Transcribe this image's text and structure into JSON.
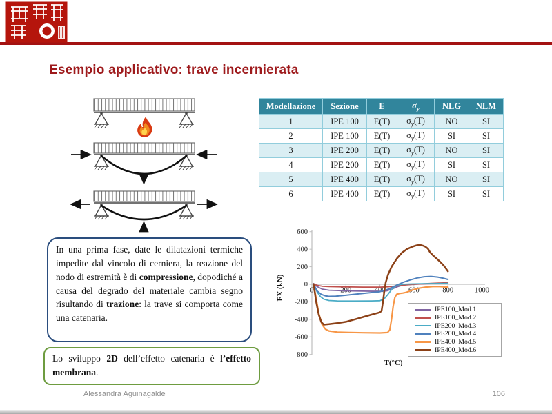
{
  "slide": {
    "title": "Esempio applicativo: trave incernierata",
    "footer": {
      "author": "Alessandra Aguinagalde",
      "page": "106"
    }
  },
  "table": {
    "headers": [
      "Modellazione",
      "Sezione",
      "E",
      "σy",
      "NLG",
      "NLM"
    ],
    "rows": [
      [
        "1",
        "IPE 100",
        "E(T)",
        "σy(T)",
        "NO",
        "SI"
      ],
      [
        "2",
        "IPE 100",
        "E(T)",
        "σy(T)",
        "SI",
        "SI"
      ],
      [
        "3",
        "IPE 200",
        "E(T)",
        "σy(T)",
        "NO",
        "SI"
      ],
      [
        "4",
        "IPE 200",
        "E(T)",
        "σy(T)",
        "SI",
        "SI"
      ],
      [
        "5",
        "IPE 400",
        "E(T)",
        "σy(T)",
        "NO",
        "SI"
      ],
      [
        "6",
        "IPE 400",
        "E(T)",
        "σy(T)",
        "SI",
        "SI"
      ]
    ],
    "header_bg": "#31859C",
    "row_alt_bg": "#DAEEF3",
    "border_color": "#92CDDC"
  },
  "notes": {
    "blue_box": {
      "part1": "In una prima fase, date le dilatazioni termiche impedite dal vincolo di cerniera, la reazione del nodo di estremità è di ",
      "bold1": "compressione",
      "part2": ", dopodiché a causa del degrado del materiale cambia segno risultando di ",
      "bold2": "trazione",
      "part3": ": la trave si comporta come una catenaria.",
      "border_color": "#2A4D7E"
    },
    "green_box": {
      "part1": "Lo sviluppo ",
      "bold1": "2D",
      "part2": " dell’effetto catenaria è ",
      "bold2": "l’effetto membrana",
      "part3": ".",
      "border_color": "#6E9C40"
    }
  },
  "chart_data": {
    "type": "line",
    "title": "",
    "xlabel": "T(°C)",
    "ylabel": "FX (kN)",
    "xlim": [
      0,
      1000
    ],
    "ylim": [
      -800,
      600
    ],
    "xticks": [
      0,
      200,
      400,
      600,
      800,
      1000
    ],
    "yticks": [
      600,
      400,
      200,
      0,
      -200,
      -400,
      -600,
      -800
    ],
    "grid": false,
    "legend_position": "inside bottom-right",
    "series": [
      {
        "name": "IPE100_Mod.1",
        "color": "#8064A2",
        "points": [
          [
            10,
            8
          ],
          [
            30,
            -25
          ],
          [
            60,
            -55
          ],
          [
            100,
            -68
          ],
          [
            200,
            -75
          ],
          [
            300,
            -78
          ],
          [
            400,
            -80
          ],
          [
            440,
            -75
          ],
          [
            470,
            -55
          ],
          [
            500,
            -30
          ],
          [
            530,
            -12
          ],
          [
            560,
            -4
          ],
          [
            600,
            1
          ],
          [
            700,
            7
          ],
          [
            800,
            12
          ]
        ]
      },
      {
        "name": "IPE100_Mod.2",
        "color": "#C0504D",
        "points": [
          [
            10,
            8
          ],
          [
            30,
            -12
          ],
          [
            60,
            -22
          ],
          [
            100,
            -27
          ],
          [
            200,
            -30
          ],
          [
            300,
            -32
          ],
          [
            400,
            -33
          ],
          [
            450,
            -28
          ],
          [
            500,
            -18
          ],
          [
            550,
            -8
          ],
          [
            600,
            -1
          ],
          [
            650,
            5
          ],
          [
            700,
            10
          ],
          [
            750,
            15
          ],
          [
            800,
            19
          ]
        ]
      },
      {
        "name": "IPE200_Mod.3",
        "color": "#4BACC6",
        "points": [
          [
            10,
            5
          ],
          [
            30,
            -85
          ],
          [
            50,
            -140
          ],
          [
            70,
            -170
          ],
          [
            100,
            -185
          ],
          [
            150,
            -190
          ],
          [
            250,
            -191
          ],
          [
            350,
            -190
          ],
          [
            400,
            -187
          ],
          [
            425,
            -165
          ],
          [
            445,
            -120
          ],
          [
            465,
            -70
          ],
          [
            485,
            -30
          ],
          [
            505,
            -8
          ],
          [
            530,
            0
          ],
          [
            580,
            4
          ],
          [
            650,
            7
          ],
          [
            800,
            10
          ]
        ]
      },
      {
        "name": "IPE200_Mod.4",
        "color": "#4F81BD",
        "points": [
          [
            10,
            5
          ],
          [
            30,
            -75
          ],
          [
            55,
            -115
          ],
          [
            80,
            -132
          ],
          [
            100,
            -138
          ],
          [
            140,
            -136
          ],
          [
            200,
            -125
          ],
          [
            260,
            -112
          ],
          [
            320,
            -100
          ],
          [
            400,
            -84
          ],
          [
            440,
            -62
          ],
          [
            470,
            -38
          ],
          [
            500,
            -8
          ],
          [
            540,
            25
          ],
          [
            580,
            50
          ],
          [
            620,
            72
          ],
          [
            660,
            86
          ],
          [
            700,
            90
          ],
          [
            740,
            82
          ],
          [
            770,
            70
          ],
          [
            800,
            55
          ]
        ]
      },
      {
        "name": "IPE400_Mod.5",
        "color": "#F79646",
        "points": [
          [
            10,
            0
          ],
          [
            25,
            -160
          ],
          [
            40,
            -330
          ],
          [
            60,
            -460
          ],
          [
            80,
            -512
          ],
          [
            100,
            -532
          ],
          [
            150,
            -545
          ],
          [
            220,
            -549
          ],
          [
            300,
            -552
          ],
          [
            400,
            -555
          ],
          [
            445,
            -550
          ],
          [
            458,
            -520
          ],
          [
            468,
            -400
          ],
          [
            478,
            -250
          ],
          [
            488,
            -150
          ],
          [
            498,
            -115
          ],
          [
            515,
            -105
          ],
          [
            535,
            -100
          ],
          [
            555,
            -92
          ],
          [
            575,
            -78
          ],
          [
            600,
            -60
          ],
          [
            630,
            -45
          ],
          [
            670,
            -32
          ],
          [
            710,
            -26
          ],
          [
            750,
            -26
          ],
          [
            800,
            -32
          ]
        ]
      },
      {
        "name": "IPE400_Mod.6",
        "color": "#8C4117",
        "points": [
          [
            10,
            0
          ],
          [
            25,
            -200
          ],
          [
            40,
            -345
          ],
          [
            55,
            -430
          ],
          [
            70,
            -460
          ],
          [
            100,
            -455
          ],
          [
            150,
            -443
          ],
          [
            200,
            -428
          ],
          [
            250,
            -402
          ],
          [
            300,
            -374
          ],
          [
            350,
            -346
          ],
          [
            400,
            -320
          ],
          [
            410,
            -300
          ],
          [
            418,
            -200
          ],
          [
            426,
            -80
          ],
          [
            434,
            20
          ],
          [
            448,
            110
          ],
          [
            470,
            205
          ],
          [
            500,
            295
          ],
          [
            530,
            360
          ],
          [
            560,
            402
          ],
          [
            590,
            428
          ],
          [
            615,
            444
          ],
          [
            635,
            450
          ],
          [
            652,
            441
          ],
          [
            668,
            428
          ],
          [
            682,
            407
          ],
          [
            695,
            365
          ],
          [
            715,
            325
          ],
          [
            735,
            290
          ],
          [
            755,
            255
          ],
          [
            775,
            215
          ],
          [
            800,
            148
          ]
        ]
      }
    ]
  }
}
